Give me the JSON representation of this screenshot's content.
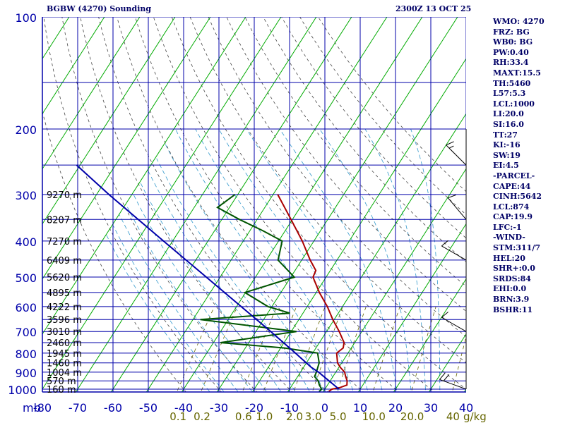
{
  "header": {
    "station": "BGBW (4270) Sounding",
    "valid_time": "2300Z 13 OCT 25"
  },
  "indices": [
    "WMO: 4270",
    "FRZ: BG",
    "WB0: BG",
    "PW:0.40",
    "RH:33.4",
    "MAXT:15.5",
    "TH:5460",
    "L57:5.3",
    "LCL:1000",
    "LI:20.0",
    "SI:16.0",
    "TT:27",
    "KI:-16",
    "SW:19",
    "EI:4.5",
    "-PARCEL-",
    "CAPE:44",
    "CINH:5642",
    "LCL:874",
    "CAP:19.9",
    "LFC:-1",
    "-WIND-",
    "STM:311/7",
    "HEL:20",
    "SHR+:0.0",
    "SRDS:84",
    "EHI:0.0",
    "BRN:3.9",
    "BSHR:11"
  ],
  "chart_data": {
    "type": "line",
    "title": "BGBW (4270) Sounding",
    "xlabel": "",
    "ylabel": "mb",
    "y_scale": "log-pressure (inverted)",
    "ylim": [
      1000,
      100
    ],
    "xlim": [
      -80,
      40
    ],
    "pressure_ticks": [
      100,
      200,
      300,
      400,
      500,
      600,
      700,
      800,
      900,
      1000
    ],
    "temperature_ticks": [
      -80,
      -70,
      -60,
      -50,
      -40,
      -30,
      -20,
      -10,
      0,
      10,
      20,
      30,
      40
    ],
    "temperature_tick_labels": [
      "-80",
      "-70",
      "-60",
      "-50",
      "-40",
      "-30",
      "-20",
      "-10",
      "0",
      "10",
      "20",
      "30",
      "40"
    ],
    "isotherms_skewed": true,
    "mixing_ratio_labels": [
      "0.1",
      "0.2",
      "0.6",
      "1.0",
      "2.0",
      "3.0",
      "5.0",
      "10.0",
      "20.0",
      "40"
    ],
    "mixing_ratio_unit": "g/kg",
    "mixing_ratio_values": [
      0.1,
      0.2,
      0.6,
      1.0,
      2.0,
      3.0,
      5.0,
      10.0,
      20.0,
      40
    ],
    "height_labels": [
      {
        "p": 300,
        "label": "9270 m"
      },
      {
        "p": 350,
        "label": "8207 m"
      },
      {
        "p": 400,
        "label": "7270 m"
      },
      {
        "p": 450,
        "label": "6409 m"
      },
      {
        "p": 500,
        "label": "5620 m"
      },
      {
        "p": 550,
        "label": "4895 m"
      },
      {
        "p": 600,
        "label": "4222 m"
      },
      {
        "p": 650,
        "label": "3596 m"
      },
      {
        "p": 700,
        "label": "3010 m"
      },
      {
        "p": 750,
        "label": "2460 m"
      },
      {
        "p": 800,
        "label": "1945 m"
      },
      {
        "p": 850,
        "label": "1460 m"
      },
      {
        "p": 900,
        "label": "1004 m"
      },
      {
        "p": 950,
        "label": "570 m"
      },
      {
        "p": 1000,
        "label": "160 m"
      }
    ],
    "series": [
      {
        "name": "Temperature",
        "color": "#aa0000",
        "points": [
          {
            "p": 1015,
            "t": 1.5
          },
          {
            "p": 1000,
            "t": 2.0
          },
          {
            "p": 990,
            "t": 4.0
          },
          {
            "p": 975,
            "t": 5.5
          },
          {
            "p": 950,
            "t": 4.8
          },
          {
            "p": 925,
            "t": 3.6
          },
          {
            "p": 900,
            "t": 2.5
          },
          {
            "p": 875,
            "t": 0.5
          },
          {
            "p": 850,
            "t": -1.2
          },
          {
            "p": 800,
            "t": -3.2
          },
          {
            "p": 775,
            "t": -2.3
          },
          {
            "p": 750,
            "t": -3.0
          },
          {
            "p": 700,
            "t": -6.4
          },
          {
            "p": 650,
            "t": -10.4
          },
          {
            "p": 600,
            "t": -14.3
          },
          {
            "p": 550,
            "t": -19.1
          },
          {
            "p": 500,
            "t": -23.7
          },
          {
            "p": 480,
            "t": -24.1
          },
          {
            "p": 450,
            "t": -27.6
          },
          {
            "p": 400,
            "t": -33.3
          },
          {
            "p": 350,
            "t": -40.4
          },
          {
            "p": 300,
            "t": -48.7
          }
        ]
      },
      {
        "name": "Dewpoint",
        "color": "#005500",
        "points": [
          {
            "p": 1015,
            "t": -1.2
          },
          {
            "p": 1000,
            "t": -0.9
          },
          {
            "p": 975,
            "t": -2.3
          },
          {
            "p": 950,
            "t": -3.4
          },
          {
            "p": 925,
            "t": -5.2
          },
          {
            "p": 900,
            "t": -5.5
          },
          {
            "p": 850,
            "t": -6.4
          },
          {
            "p": 800,
            "t": -8.6
          },
          {
            "p": 775,
            "t": -18.9
          },
          {
            "p": 750,
            "t": -38.0
          },
          {
            "p": 700,
            "t": -18.5
          },
          {
            "p": 650,
            "t": -47.9
          },
          {
            "p": 625,
            "t": -23.7
          },
          {
            "p": 600,
            "t": -31.1
          },
          {
            "p": 550,
            "t": -40.2
          },
          {
            "p": 500,
            "t": -29.0
          },
          {
            "p": 450,
            "t": -36.7
          },
          {
            "p": 400,
            "t": -39.0
          },
          {
            "p": 375,
            "t": -46.4
          },
          {
            "p": 350,
            "t": -55.0
          },
          {
            "p": 325,
            "t": -63.4
          },
          {
            "p": 300,
            "t": -60.8
          }
        ]
      },
      {
        "name": "Parcel",
        "color": "#0000aa",
        "points": [
          {
            "p": 1000,
            "t": 4.0
          },
          {
            "p": 900,
            "t": -4.9
          },
          {
            "p": 874,
            "t": -7.8
          },
          {
            "p": 800,
            "t": -14.9
          },
          {
            "p": 700,
            "t": -25.8
          },
          {
            "p": 600,
            "t": -38.7
          },
          {
            "p": 500,
            "t": -53.9
          },
          {
            "p": 400,
            "t": -72.6
          },
          {
            "p": 300,
            "t": -96.5
          },
          {
            "p": 250,
            "t": -111.0
          }
        ]
      }
    ],
    "wind_barbs": [
      {
        "p": 1000,
        "dir": 290,
        "spd": 20
      },
      {
        "p": 700,
        "dir": 300,
        "spd": 10
      },
      {
        "p": 450,
        "dir": 300,
        "spd": 10
      },
      {
        "p": 350,
        "dir": 320,
        "spd": 10
      },
      {
        "p": 250,
        "dir": 315,
        "spd": 15
      }
    ],
    "colors": {
      "grid": "#0000aa",
      "isotherm": "#00aa00",
      "dry_adiabat": "#444444",
      "moist_adiabat": "#3399cc",
      "mixing_ratio": "#666600"
    }
  }
}
